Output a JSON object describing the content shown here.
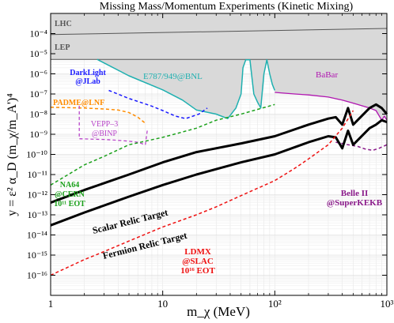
{
  "chart_data": {
    "type": "line",
    "title": "Missing Mass/Momentum Experiments (Kinetic Mixing)",
    "xlabel": "m_χ (MeV)",
    "ylabel": "y = ε² α_D (m_χ/m_A')⁴",
    "xscale": "log",
    "yscale": "log",
    "xlim": [
      1,
      1000
    ],
    "ylim": [
      1e-17,
      0.001
    ],
    "grid": true,
    "x_ticks": [
      "1",
      "10",
      "10²",
      "10³"
    ],
    "y_ticks": [
      "10⁻⁴",
      "10⁻⁵",
      "10⁻⁶",
      "10⁻⁷",
      "10⁻⁸",
      "10⁻⁹",
      "10⁻¹⁰",
      "10⁻¹¹",
      "10⁻¹²",
      "10⁻¹³",
      "10⁻¹⁴",
      "10⁻¹⁵",
      "10⁻¹⁶"
    ],
    "colors": {
      "excluded_fill": "#d9d9d9",
      "boundary": "#555555",
      "e787": "#1fb0b0",
      "darklight": "#1a1aff",
      "padme": "#ff8c00",
      "vepp3": "#b845c9",
      "na64": "#1aa01a",
      "babar": "#b015b0",
      "belle": "#8a1a8a",
      "relic": "#000000",
      "ldmx": "#ee1111"
    },
    "labels": {
      "lhc": "LHC",
      "lep": "LEP",
      "e787": "E787/949@BNL",
      "babar": "BaBar",
      "darklight_1": "DarkLight",
      "darklight_2": "@JLab",
      "padme": "PADME@LNF",
      "vepp3_1": "VEPP–3",
      "vepp3_2": "@BINP",
      "na64_1": "NA64",
      "na64_2": "@CERN",
      "na64_3": "10¹¹ EOT",
      "belle_1": "Belle II",
      "belle_2": "@SuperKEKB",
      "scalar": "Scalar Relic Target",
      "fermion": "Fermion Relic Target",
      "ldmx_1": "LDMX",
      "ldmx_2": "@SLAC",
      "ldmx_3": "10¹⁶ EOT"
    },
    "series": [
      {
        "name": "LHC",
        "x": [
          1,
          1000
        ],
        "y": [
          8.9e-05,
          0.00018
        ]
      },
      {
        "name": "LEP",
        "x": [
          1,
          1000
        ],
        "y": [
          5.2e-06,
          5.2e-06
        ]
      },
      {
        "name": "E787/949@BNL",
        "x": [
          2.6,
          5,
          10,
          15,
          20,
          30,
          38,
          45,
          50,
          52,
          55,
          60,
          65,
          70,
          75,
          80,
          85,
          90,
          95,
          100
        ],
        "y": [
          5.2e-06,
          8e-07,
          1.6e-07,
          5e-08,
          1.6e-08,
          1e-08,
          6e-09,
          2e-08,
          1e-07,
          2e-06,
          5e-06,
          5e-06,
          1e-07,
          4e-08,
          2e-08,
          1e-06,
          5e-06,
          1e-06,
          3e-07,
          1.5e-07
        ]
      },
      {
        "name": "BaBar",
        "x": [
          100,
          150,
          200,
          300,
          400,
          500,
          700,
          800,
          900,
          950,
          1000
        ],
        "y": [
          1.2e-07,
          1e-07,
          9e-08,
          7e-08,
          5e-08,
          3.5e-08,
          2e-08,
          1.5e-08,
          5e-09,
          8e-09,
          5e-09
        ]
      },
      {
        "name": "DarkLight@JLab",
        "x": [
          3.3,
          5,
          8,
          10,
          13,
          16,
          21,
          25
        ],
        "y": [
          1.5e-07,
          6e-08,
          2.5e-08,
          1.5e-08,
          8e-09,
          6e-09,
          1e-08,
          2e-08
        ]
      },
      {
        "name": "PADME@LNF",
        "x": [
          1,
          2,
          3,
          4,
          5,
          6,
          7
        ],
        "y": [
          2.2e-08,
          2e-08,
          1.8e-08,
          1.6e-08,
          1.2e-08,
          7e-09,
          3.5e-09
        ]
      },
      {
        "name": "VEPP–3@BINP",
        "x": [
          1.8,
          1.8,
          3,
          4,
          5,
          6,
          7,
          7.3
        ],
        "y": [
          2.6e-08,
          6e-10,
          5.5e-10,
          5e-10,
          4.5e-10,
          4e-10,
          3e-10,
          1.7e-09
        ]
      },
      {
        "name": "NA64@CERN",
        "x": [
          1,
          2,
          3,
          5,
          10,
          20,
          30,
          50,
          100
        ],
        "y": [
          3e-12,
          3e-11,
          8e-11,
          3e-10,
          7e-10,
          2e-09,
          5e-09,
          1e-08,
          3e-08
        ]
      },
      {
        "name": "Belle II@SuperKEKB",
        "x": [
          350,
          450,
          550,
          650,
          750,
          850,
          1000
        ],
        "y": [
          4e-10,
          3e-10,
          2.5e-10,
          1.8e-10,
          1.6e-10,
          2e-10,
          3e-10
        ]
      },
      {
        "name": "Scalar Relic Target",
        "x": [
          1,
          2,
          5,
          10,
          20,
          50,
          100,
          200,
          300,
          350,
          400,
          450,
          500,
          700,
          800,
          900,
          1000
        ],
        "y": [
          4e-13,
          1.7e-12,
          1e-11,
          4e-11,
          1.3e-10,
          3.5e-10,
          8e-10,
          3e-09,
          6e-09,
          7e-09,
          3e-09,
          2e-08,
          3e-09,
          2e-08,
          3e-08,
          2e-08,
          1e-08
        ]
      },
      {
        "name": "Fermion Relic Target",
        "x": [
          1,
          2,
          5,
          10,
          20,
          50,
          100,
          200,
          300,
          350,
          400,
          450,
          500,
          700,
          800,
          900,
          1000
        ],
        "y": [
          3e-14,
          1.3e-13,
          8e-13,
          3e-12,
          1e-11,
          4e-11,
          1e-10,
          4e-10,
          8e-10,
          7e-10,
          2e-10,
          1.5e-09,
          3e-10,
          2e-09,
          3e-09,
          5e-09,
          4e-09
        ]
      },
      {
        "name": "LDMX@SLAC",
        "x": [
          1,
          2,
          3,
          5,
          10,
          20,
          30,
          50,
          100,
          150,
          200,
          300,
          400,
          500
        ],
        "y": [
          1e-16,
          6e-16,
          1.5e-15,
          5e-15,
          2.5e-14,
          1e-13,
          2.5e-13,
          9e-13,
          5e-12,
          2e-11,
          6e-11,
          3e-10,
          2e-09,
          1.5e-08
        ]
      }
    ]
  }
}
